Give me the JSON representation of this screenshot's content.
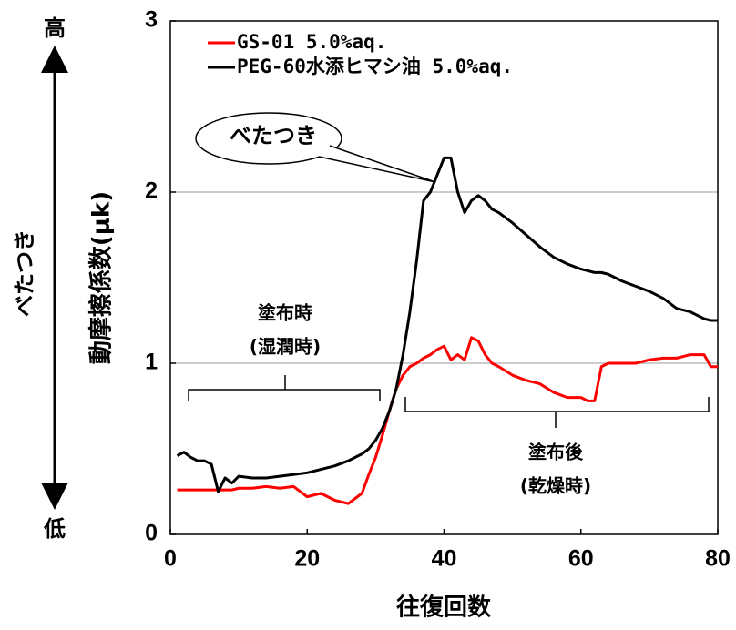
{
  "chart_data": {
    "type": "line",
    "x_label": "往復回数",
    "y_label": "動摩擦係数(μk)",
    "x": [
      1,
      2,
      3,
      4,
      5,
      6,
      7,
      8,
      9,
      10,
      12,
      14,
      16,
      18,
      20,
      22,
      24,
      26,
      28,
      29,
      30,
      31,
      32,
      33,
      34,
      35,
      36,
      37,
      38,
      39,
      40,
      41,
      42,
      43,
      44,
      45,
      46,
      47,
      48,
      50,
      52,
      54,
      56,
      58,
      60,
      61,
      62,
      63,
      64,
      66,
      68,
      70,
      72,
      74,
      76,
      78,
      79,
      80
    ],
    "series": [
      {
        "name": "GS-01 5.0%aq.",
        "color": "#ff0000",
        "values": [
          0.26,
          0.26,
          0.26,
          0.26,
          0.26,
          0.26,
          0.26,
          0.26,
          0.26,
          0.27,
          0.27,
          0.28,
          0.27,
          0.28,
          0.22,
          0.24,
          0.2,
          0.18,
          0.24,
          0.35,
          0.45,
          0.58,
          0.72,
          0.85,
          0.93,
          0.98,
          1.0,
          1.03,
          1.05,
          1.08,
          1.1,
          1.02,
          1.05,
          1.02,
          1.15,
          1.13,
          1.05,
          1.0,
          0.98,
          0.93,
          0.9,
          0.88,
          0.83,
          0.8,
          0.8,
          0.78,
          0.78,
          0.98,
          1.0,
          1.0,
          1.0,
          1.02,
          1.03,
          1.03,
          1.05,
          1.05,
          0.98,
          0.98
        ]
      },
      {
        "name": "PEG-60水添ヒマシ油 5.0%aq.",
        "color": "#000000",
        "values": [
          0.46,
          0.48,
          0.45,
          0.43,
          0.43,
          0.41,
          0.25,
          0.33,
          0.3,
          0.34,
          0.33,
          0.33,
          0.34,
          0.35,
          0.36,
          0.38,
          0.4,
          0.43,
          0.47,
          0.5,
          0.55,
          0.62,
          0.72,
          0.85,
          1.05,
          1.3,
          1.6,
          1.95,
          2.0,
          2.1,
          2.2,
          2.2,
          2.0,
          1.88,
          1.95,
          1.98,
          1.95,
          1.9,
          1.88,
          1.82,
          1.75,
          1.68,
          1.62,
          1.58,
          1.55,
          1.54,
          1.53,
          1.53,
          1.52,
          1.48,
          1.45,
          1.42,
          1.38,
          1.32,
          1.3,
          1.26,
          1.25,
          1.25
        ]
      }
    ],
    "xlim": [
      0,
      80
    ],
    "xticks": [
      0,
      20,
      40,
      60,
      80
    ],
    "ylim": [
      0,
      3
    ],
    "yticks": [
      0,
      1,
      2,
      3
    ],
    "grid": true,
    "legend": "top-left",
    "annotations": {
      "callout": "べたつき",
      "wet": [
        "塗布時",
        "(湿潤時)"
      ],
      "dry": [
        "塗布後",
        "(乾燥時)"
      ],
      "side_label": "べたつき",
      "high": "高",
      "low": "低"
    }
  }
}
